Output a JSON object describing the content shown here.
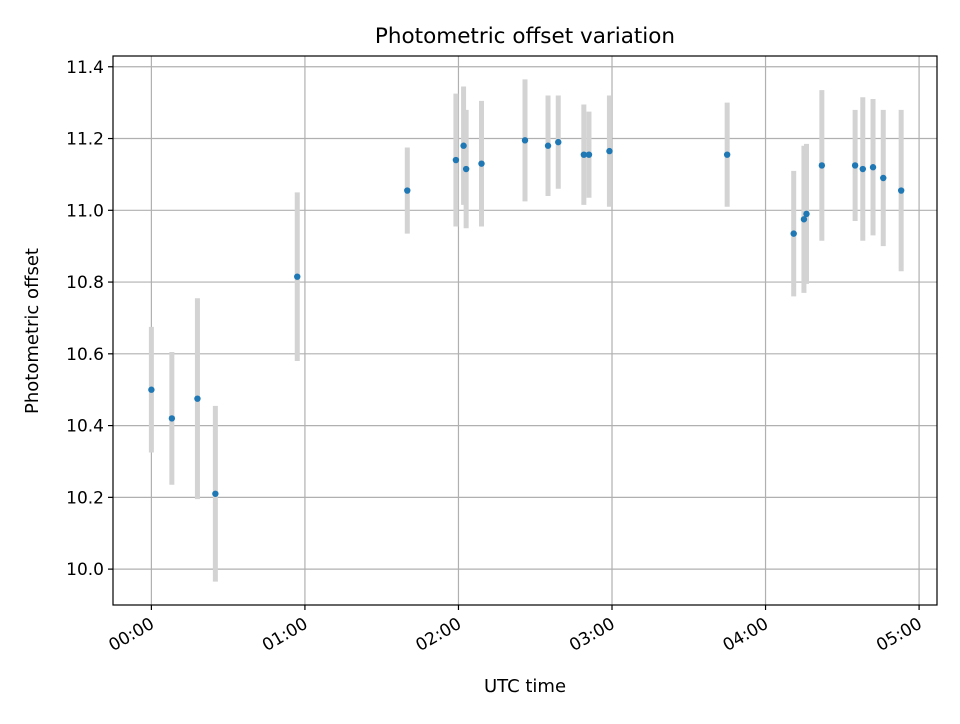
{
  "chart_data": {
    "type": "scatter",
    "title": "Photometric offset variation",
    "xlabel": "UTC time",
    "ylabel": "Photometric offset",
    "grid": true,
    "legend": "none",
    "xlim": [
      "23:45",
      "05:07"
    ],
    "ylim": [
      9.9,
      11.43
    ],
    "x_ticks": [
      "00:00",
      "01:00",
      "02:00",
      "03:00",
      "04:00",
      "05:00"
    ],
    "y_ticks": [
      "10.0",
      "10.2",
      "10.4",
      "10.6",
      "10.8",
      "11.0",
      "11.2",
      "11.4"
    ],
    "colors": {
      "point": "#1f77b4",
      "errorbar": "#d3d3d3",
      "grid": "#b0b0b0"
    },
    "points": [
      {
        "x": "00:00",
        "y": 10.5,
        "err": 0.175
      },
      {
        "x": "00:08",
        "y": 10.42,
        "err": 0.185
      },
      {
        "x": "00:18",
        "y": 10.475,
        "err": 0.28
      },
      {
        "x": "00:25",
        "y": 10.21,
        "err": 0.245
      },
      {
        "x": "00:57",
        "y": 10.815,
        "err": 0.235
      },
      {
        "x": "01:40",
        "y": 11.055,
        "err": 0.12
      },
      {
        "x": "01:59",
        "y": 11.14,
        "err": 0.185
      },
      {
        "x": "02:02",
        "y": 11.18,
        "err": 0.165
      },
      {
        "x": "02:03",
        "y": 11.115,
        "err": 0.165
      },
      {
        "x": "02:09",
        "y": 11.13,
        "err": 0.175
      },
      {
        "x": "02:26",
        "y": 11.195,
        "err": 0.17
      },
      {
        "x": "02:35",
        "y": 11.18,
        "err": 0.14
      },
      {
        "x": "02:39",
        "y": 11.19,
        "err": 0.13
      },
      {
        "x": "02:49",
        "y": 11.155,
        "err": 0.14
      },
      {
        "x": "02:51",
        "y": 11.155,
        "err": 0.12
      },
      {
        "x": "02:59",
        "y": 11.165,
        "err": 0.155
      },
      {
        "x": "03:45",
        "y": 11.155,
        "err": 0.145
      },
      {
        "x": "04:11",
        "y": 10.935,
        "err": 0.175
      },
      {
        "x": "04:15",
        "y": 10.975,
        "err": 0.205
      },
      {
        "x": "04:16",
        "y": 10.99,
        "err": 0.195
      },
      {
        "x": "04:22",
        "y": 11.125,
        "err": 0.21
      },
      {
        "x": "04:35",
        "y": 11.125,
        "err": 0.155
      },
      {
        "x": "04:38",
        "y": 11.115,
        "err": 0.2
      },
      {
        "x": "04:42",
        "y": 11.12,
        "err": 0.19
      },
      {
        "x": "04:46",
        "y": 11.09,
        "err": 0.19
      },
      {
        "x": "04:53",
        "y": 11.055,
        "err": 0.225
      }
    ]
  }
}
